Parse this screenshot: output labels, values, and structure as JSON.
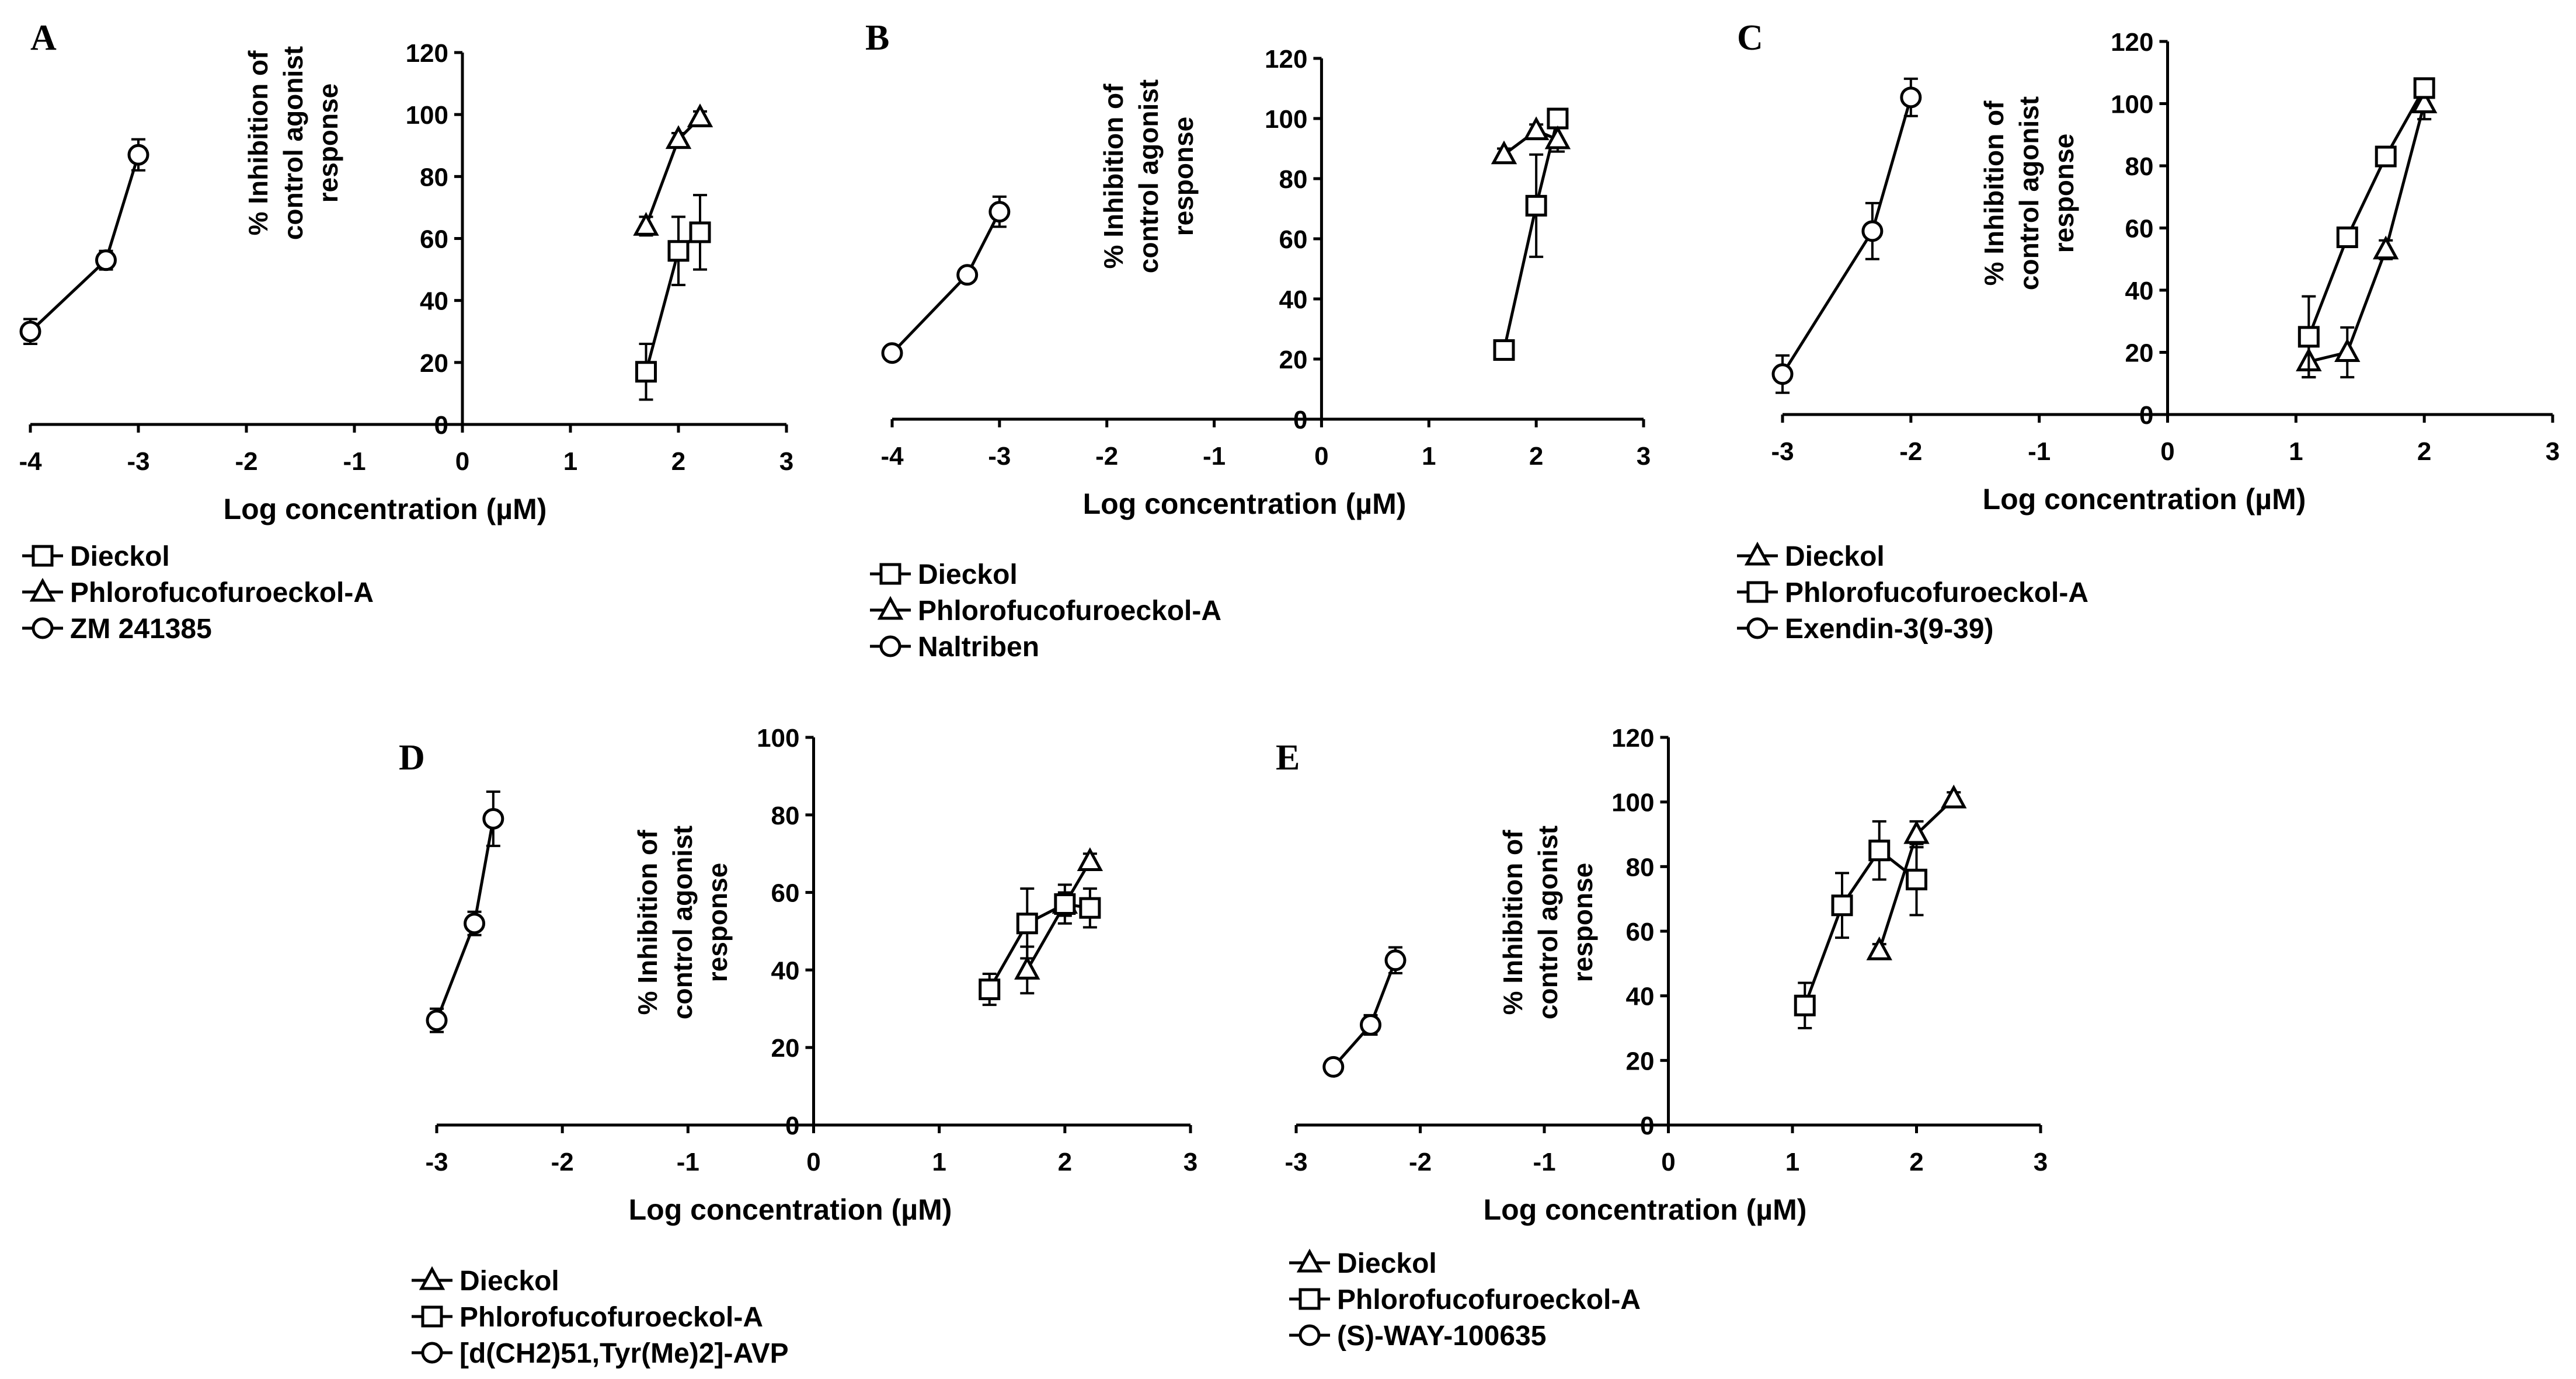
{
  "chart_data": [
    {
      "type": "line",
      "panel_label": "A",
      "xlabel": "Log concentration (µM)",
      "ylabel_lines": [
        "% Inhibition of",
        "control agonist",
        "response"
      ],
      "xlim": [
        -4,
        3
      ],
      "ylim": [
        0,
        120
      ],
      "xticks": [
        -4,
        -3,
        -2,
        -1,
        0,
        1,
        2,
        3
      ],
      "yticks": [
        0,
        20,
        40,
        60,
        80,
        100,
        120
      ],
      "series": [
        {
          "name": "Dieckol",
          "marker": "square",
          "x": [
            1.7,
            2.0,
            2.2
          ],
          "y": [
            17,
            56,
            62
          ],
          "err": [
            9,
            11,
            12
          ]
        },
        {
          "name": "Phlorofucofuroeckol-A",
          "marker": "triangle",
          "x": [
            1.7,
            2.0,
            2.2
          ],
          "y": [
            64,
            92,
            99
          ],
          "err": [
            3,
            2,
            2
          ]
        },
        {
          "name": "ZM 241385",
          "marker": "circle",
          "x": [
            -4.0,
            -3.3,
            -3.0
          ],
          "y": [
            30,
            53,
            87
          ],
          "err": [
            4,
            3,
            5
          ]
        }
      ]
    },
    {
      "type": "line",
      "panel_label": "B",
      "xlabel": "Log concentration (µM)",
      "ylabel_lines": [
        "% Inhibition of",
        "control agonist",
        "response"
      ],
      "xlim": [
        -4,
        3
      ],
      "ylim": [
        0,
        120
      ],
      "xticks": [
        -4,
        -3,
        -2,
        -1,
        0,
        1,
        2,
        3
      ],
      "yticks": [
        0,
        20,
        40,
        60,
        80,
        100,
        120
      ],
      "series": [
        {
          "name": "Dieckol",
          "marker": "square",
          "x": [
            1.7,
            2.0,
            2.2
          ],
          "y": [
            23,
            71,
            100
          ],
          "err": [
            3,
            17,
            2
          ]
        },
        {
          "name": "Phlorofucofuroeckol-A",
          "marker": "triangle",
          "x": [
            1.7,
            2.0,
            2.2
          ],
          "y": [
            88,
            96,
            93
          ],
          "err": [
            2,
            2,
            4
          ]
        },
        {
          "name": "Naltriben",
          "marker": "circle",
          "x": [
            -4.0,
            -3.3,
            -3.0
          ],
          "y": [
            22,
            48,
            69
          ],
          "err": [
            2,
            2,
            5
          ]
        }
      ]
    },
    {
      "type": "line",
      "panel_label": "C",
      "xlabel": "Log concentration (µM)",
      "ylabel_lines": [
        "% Inhibition of",
        "control agonist",
        "response"
      ],
      "xlim": [
        -3,
        3
      ],
      "ylim": [
        0,
        120
      ],
      "xticks": [
        -3,
        -2,
        -1,
        0,
        1,
        2,
        3
      ],
      "yticks": [
        0,
        20,
        40,
        60,
        80,
        100,
        120
      ],
      "series": [
        {
          "name": "Dieckol",
          "marker": "triangle",
          "x": [
            1.1,
            1.4,
            1.7,
            2.0
          ],
          "y": [
            17,
            20,
            53,
            100
          ],
          "err": [
            5,
            8,
            3,
            5
          ]
        },
        {
          "name": "Phlorofucofuroeckol-A",
          "marker": "square",
          "x": [
            1.1,
            1.4,
            1.7,
            2.0
          ],
          "y": [
            25,
            57,
            83,
            105
          ],
          "err": [
            13,
            3,
            2,
            3
          ]
        },
        {
          "name": "Exendin-3(9-39)",
          "marker": "circle",
          "x": [
            -3.0,
            -2.3,
            -2.0
          ],
          "y": [
            13,
            59,
            102
          ],
          "err": [
            6,
            9,
            6
          ]
        }
      ]
    },
    {
      "type": "line",
      "panel_label": "D",
      "xlabel": "Log concentration (µM)",
      "ylabel_lines": [
        "% Inhibition of",
        "control agonist",
        "response"
      ],
      "xlim": [
        -3,
        3
      ],
      "ylim": [
        0,
        100
      ],
      "xticks": [
        -3,
        -2,
        -1,
        0,
        1,
        2,
        3
      ],
      "yticks": [
        0,
        20,
        40,
        60,
        80,
        100
      ],
      "series": [
        {
          "name": "Dieckol",
          "marker": "triangle",
          "x": [
            1.7,
            2.0,
            2.2
          ],
          "y": [
            40,
            57,
            68
          ],
          "err": [
            6,
            5,
            2
          ]
        },
        {
          "name": "Phlorofucofuroeckol-A",
          "marker": "square",
          "x": [
            1.4,
            1.7,
            2.0,
            2.2
          ],
          "y": [
            35,
            52,
            57,
            56
          ],
          "err": [
            4,
            9,
            3,
            5
          ]
        },
        {
          "name": "[d(CH2)51,Tyr(Me)2]-AVP",
          "marker": "circle",
          "x": [
            -3.0,
            -2.7,
            -2.55
          ],
          "y": [
            27,
            52,
            79
          ],
          "err": [
            3,
            3,
            7
          ]
        }
      ]
    },
    {
      "type": "line",
      "panel_label": "E",
      "xlabel": "Log concentration (µM)",
      "ylabel_lines": [
        "% Inhibition of",
        "control agonist",
        "response"
      ],
      "xlim": [
        -3,
        3
      ],
      "ylim": [
        0,
        120
      ],
      "xticks": [
        -3,
        -2,
        -1,
        0,
        1,
        2,
        3
      ],
      "yticks": [
        0,
        20,
        40,
        60,
        80,
        100,
        120
      ],
      "series": [
        {
          "name": "Dieckol",
          "marker": "triangle",
          "x": [
            1.7,
            2.0,
            2.3
          ],
          "y": [
            54,
            90,
            101
          ],
          "err": [
            2,
            4,
            2
          ]
        },
        {
          "name": "Phlorofucofuroeckol-A",
          "marker": "square",
          "x": [
            1.1,
            1.4,
            1.7,
            2.0
          ],
          "y": [
            37,
            68,
            85,
            76
          ],
          "err": [
            7,
            10,
            9,
            11
          ]
        },
        {
          "name": "(S)-WAY-100635",
          "marker": "circle",
          "x": [
            -2.7,
            -2.4,
            -2.2
          ],
          "y": [
            18,
            31,
            51
          ],
          "err": [
            2,
            3,
            4
          ]
        }
      ]
    }
  ]
}
